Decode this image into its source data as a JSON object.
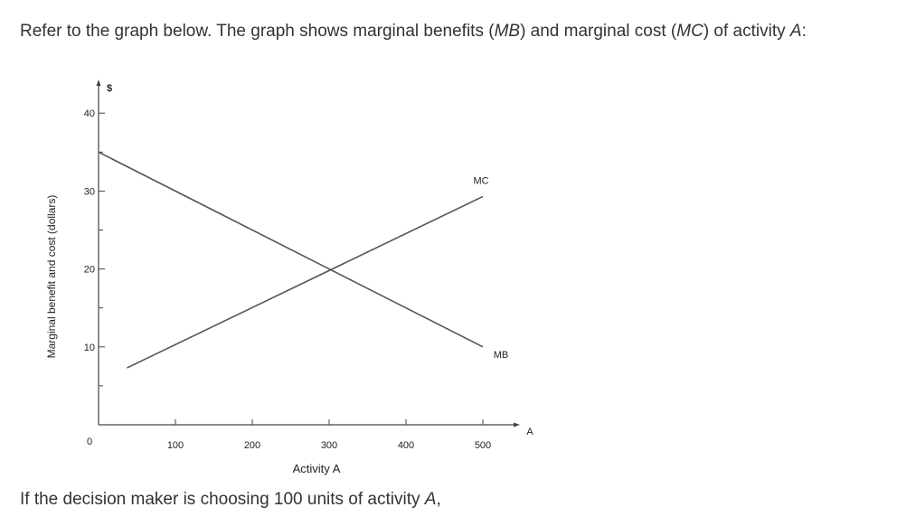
{
  "question": {
    "t1": "Refer to the graph below. The graph shows marginal benefits (",
    "mb": "MB",
    "t2": ") and marginal cost (",
    "mc": "MC",
    "t3": ") of activity ",
    "a": "A",
    "t4": ":"
  },
  "followup": {
    "t1": "If the decision maker is choosing 100 units of activity ",
    "a": "A",
    "t2": ","
  },
  "chart_data": {
    "type": "line",
    "xlabel": "Activity A",
    "ylabel": "Marginal benefit and cost (dollars)",
    "x_axis_end_label": "A",
    "y_axis_top_label": "$",
    "origin_label": "0",
    "xlim": [
      0,
      560
    ],
    "ylim": [
      0,
      42
    ],
    "x_ticks": [
      100,
      200,
      300,
      400,
      500
    ],
    "y_ticks": [
      10,
      20,
      30,
      40
    ],
    "y_minor_ticks": [
      5,
      15,
      25,
      35
    ],
    "grid": false,
    "series": [
      {
        "name": "MB",
        "x": [
          0,
          500
        ],
        "y": [
          35,
          10
        ],
        "color": "#555555"
      },
      {
        "name": "MC",
        "x": [
          37,
          500
        ],
        "y": [
          7.3,
          29.3
        ],
        "color": "#555555"
      }
    ]
  }
}
